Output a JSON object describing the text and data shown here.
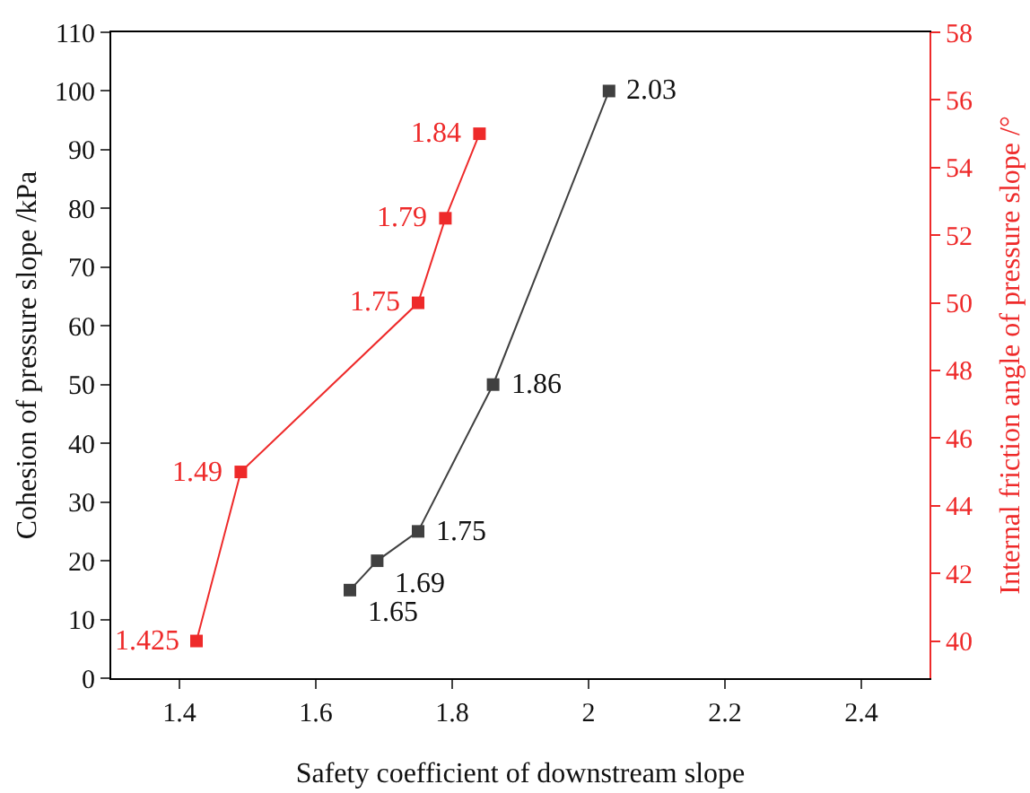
{
  "chart_data": {
    "type": "line",
    "xlabel": "Safety coefficient of downstream slope",
    "ylabel": "Cohesion of pressure slope /kPa",
    "y2label": "Internal friction angle of pressure slope /°",
    "xlim": [
      1.3,
      2.5
    ],
    "xticks": [
      1.4,
      1.6,
      1.8,
      2.0,
      2.2,
      2.4
    ],
    "ylim": [
      0,
      110
    ],
    "yticks": [
      0,
      10,
      20,
      30,
      40,
      50,
      60,
      70,
      80,
      90,
      100,
      110
    ],
    "y2lim": [
      38.9,
      58
    ],
    "y2ticks": [
      40,
      42,
      44,
      46,
      48,
      50,
      52,
      54,
      56,
      58
    ],
    "marker": "square",
    "grid": false,
    "series": [
      {
        "color": "#404040",
        "x": [
          1.65,
          1.69,
          1.75,
          1.86,
          2.03
        ],
        "values": [
          15,
          20,
          25,
          50,
          100
        ]
      },
      {
        "color": "#ee2a2a",
        "axis": "y2",
        "x": [
          1.425,
          1.49,
          1.75,
          1.79,
          1.84
        ],
        "values": [
          40,
          45,
          50,
          52.5,
          55
        ]
      }
    ],
    "annotations": [
      {
        "text": "1.65",
        "x": 1.65,
        "y": 15
      },
      {
        "text": "1.69",
        "x": 1.69,
        "y": 20
      },
      {
        "text": "1.75",
        "x": 1.75,
        "y": 25
      },
      {
        "text": "1.86",
        "x": 1.86,
        "y": 50
      },
      {
        "text": "2.03",
        "x": 2.03,
        "y": 100
      },
      {
        "text": "1.425",
        "x": 1.425,
        "y": 6.3
      },
      {
        "text": "1.49",
        "x": 1.49,
        "y": 35.1
      },
      {
        "text": "1.75",
        "x": 1.75,
        "y": 63.9
      },
      {
        "text": "1.79",
        "x": 1.79,
        "y": 78.3
      },
      {
        "text": "1.84",
        "x": 1.84,
        "y": 92.7
      }
    ]
  }
}
